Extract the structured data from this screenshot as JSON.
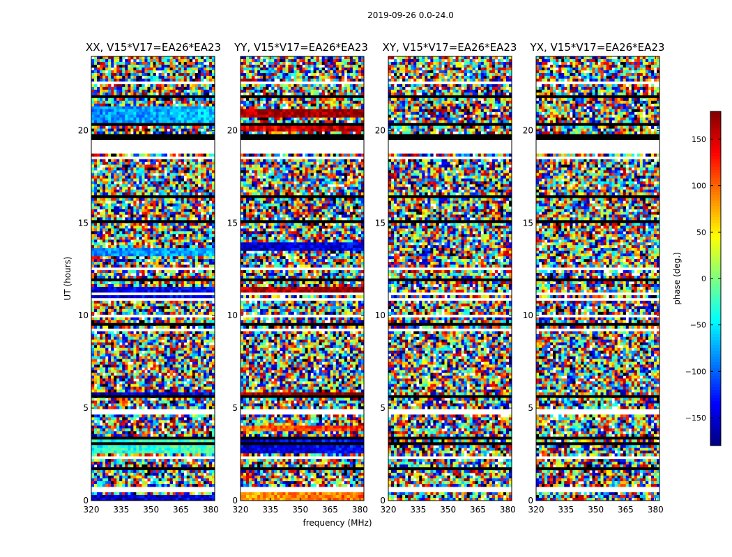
{
  "chart_data": {
    "type": "heatmap",
    "suptitle": "2019-09-26 0.0-24.0",
    "xlabel": "frequency (MHz)",
    "ylabel": "UT (hours)",
    "xlim": [
      320,
      382
    ],
    "ylim": [
      0,
      24
    ],
    "x_ticks": [
      320,
      335,
      350,
      365,
      380
    ],
    "y_ticks": [
      0,
      5,
      10,
      15,
      20
    ],
    "colormap": "jet",
    "colorbar": {
      "label": "phase (deg.)",
      "range": [
        -180,
        180
      ],
      "ticks": [
        -150,
        -100,
        -50,
        0,
        50,
        100,
        150
      ],
      "tick_labels": [
        "−150",
        "−100",
        "−50",
        "0",
        "50",
        "100",
        "150"
      ]
    },
    "blank_bands_hours": [
      [
        18.7,
        19.7
      ],
      [
        0.45,
        0.75
      ]
    ],
    "panels": [
      {
        "title": "XX, V15*V17=EA26*EA23",
        "coherent_bands": [
          {
            "range": [
              20.2,
              21.3
            ],
            "phase": -85
          },
          {
            "range": [
              11.0,
              11.5
            ],
            "phase": -150
          },
          {
            "range": [
              13.2,
              13.7
            ],
            "phase": -90
          },
          {
            "range": [
              5.5,
              5.9
            ],
            "phase": -160
          },
          {
            "range": [
              2.5,
              3.5
            ],
            "phase": -40
          },
          {
            "range": [
              0.05,
              0.3
            ],
            "phase": -160
          }
        ]
      },
      {
        "title": "YY, V15*V17=EA26*EA23",
        "coherent_bands": [
          {
            "range": [
              20.7,
              21.2
            ],
            "phase": 160
          },
          {
            "range": [
              20.0,
              20.4
            ],
            "phase": 140
          },
          {
            "range": [
              11.1,
              11.5
            ],
            "phase": 160
          },
          {
            "range": [
              13.5,
              14.0
            ],
            "phase": -160
          },
          {
            "range": [
              5.5,
              5.8
            ],
            "phase": 170
          },
          {
            "range": [
              3.7,
              4.0
            ],
            "phase": 100
          },
          {
            "range": [
              2.5,
              3.4
            ],
            "phase": -150
          },
          {
            "range": [
              0.05,
              0.4
            ],
            "phase": 80
          }
        ]
      },
      {
        "title": "XY, V15*V17=EA26*EA23",
        "coherent_bands": []
      },
      {
        "title": "YX, V15*V17=EA26*EA23",
        "coherent_bands": []
      }
    ]
  }
}
